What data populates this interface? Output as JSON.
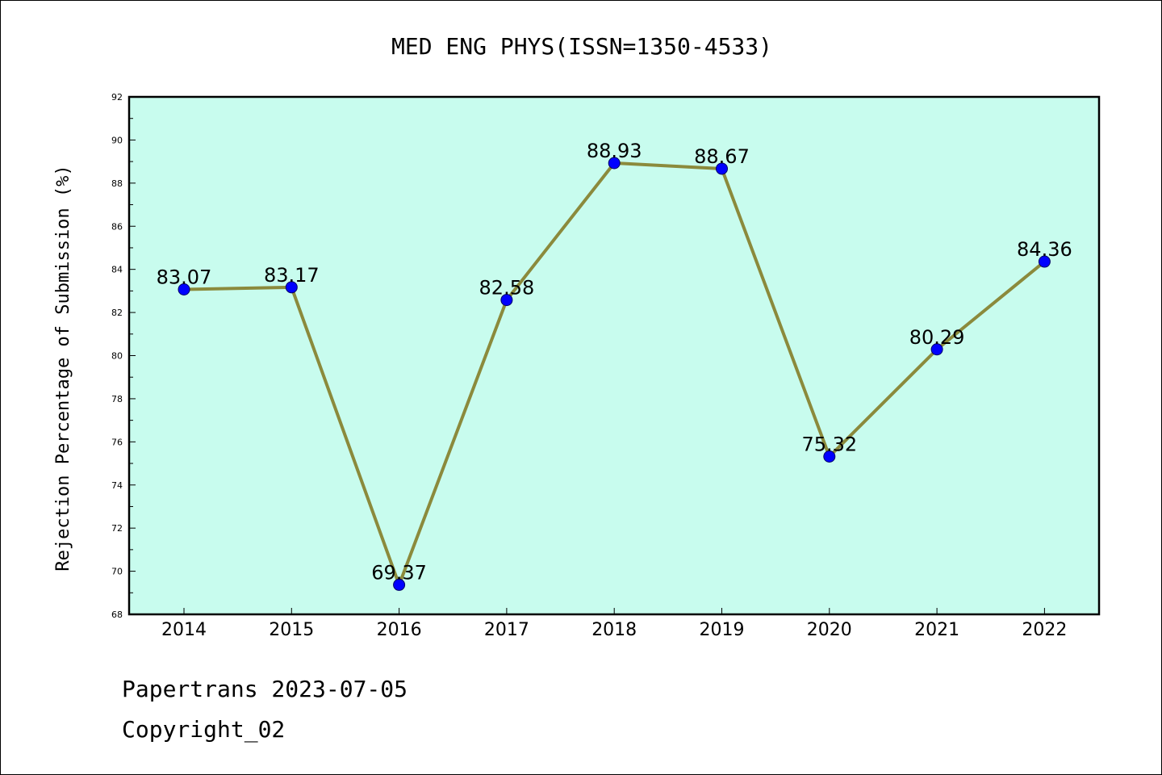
{
  "chart_data": {
    "type": "line",
    "title": "MED ENG PHYS(ISSN=1350-4533)",
    "xlabel": "",
    "ylabel": "Rejection Percentage of Submission (%)",
    "categories": [
      "2014",
      "2015",
      "2016",
      "2017",
      "2018",
      "2019",
      "2020",
      "2021",
      "2022"
    ],
    "series": [
      {
        "values": [
          83.07,
          83.17,
          69.37,
          82.58,
          88.93,
          88.67,
          75.32,
          80.29,
          84.36
        ]
      }
    ],
    "data_labels": [
      "83.07",
      "83.17",
      "69.37",
      "82.58",
      "88.93",
      "88.67",
      "75.32",
      "80.29",
      "84.36"
    ],
    "ylim": [
      68,
      92
    ],
    "yticks": [
      "68",
      "70",
      "72",
      "74",
      "76",
      "78",
      "80",
      "82",
      "84",
      "86",
      "88",
      "90",
      "92"
    ],
    "grid": false,
    "legend": "none",
    "colors": {
      "plot_background": "#c8fcee",
      "line": "#8b8a3c",
      "marker": "#0000ff"
    }
  },
  "footer": {
    "line1": "Papertrans 2023-07-05",
    "line2": "Copyright_02"
  }
}
